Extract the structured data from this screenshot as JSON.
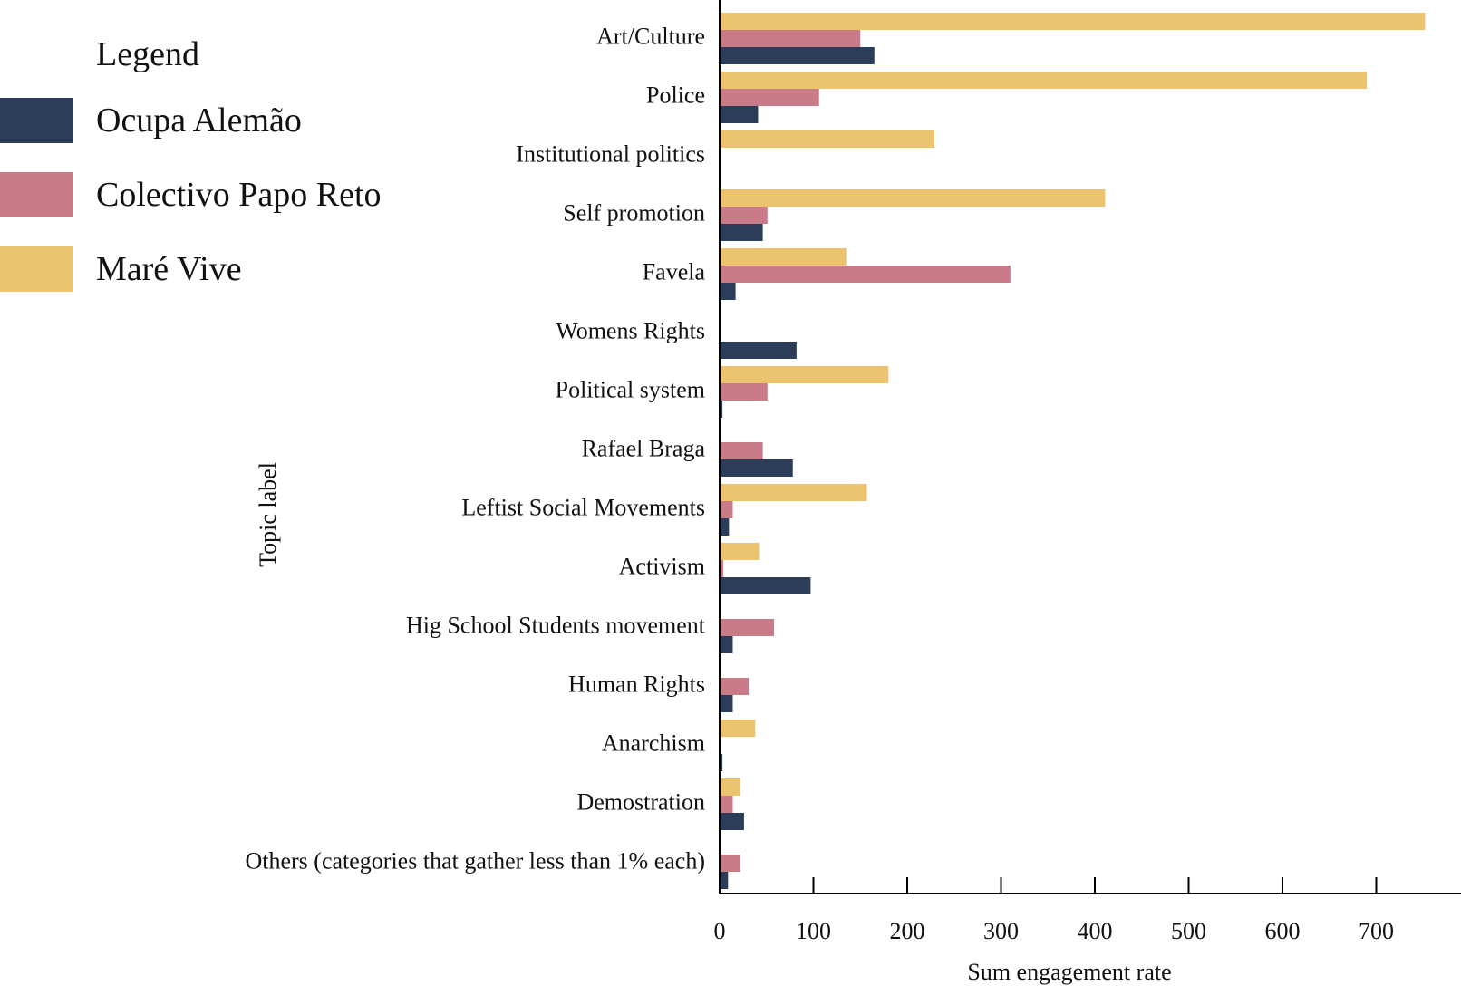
{
  "chart_data": {
    "type": "bar",
    "orientation": "horizontal",
    "title": "",
    "xlabel": "Sum engagement rate",
    "ylabel": "Topic label",
    "xlim": [
      0,
      780
    ],
    "xticks": [
      0,
      100,
      200,
      300,
      400,
      500,
      600,
      700
    ],
    "grid": false,
    "legend_title": "Legend",
    "legend_position": "top-left",
    "categories": [
      "Art/Culture",
      "Police",
      "Institutional politics",
      "Self promotion",
      "Favela",
      "Womens Rights",
      "Political system",
      "Rafael Braga",
      "Leftist Social Movements",
      "Activism",
      "Hig School Students movement",
      "Human Rights",
      "Anarchism",
      "Demostration",
      "Others (categories that gather less than 1% each)"
    ],
    "series": [
      {
        "name": "Maré Vive",
        "color": "#ECC46F",
        "values": [
          752,
          690,
          229,
          411,
          135,
          0,
          180,
          0,
          157,
          42,
          0,
          0,
          38,
          22,
          0
        ]
      },
      {
        "name": "Colectivo Papo Reto",
        "color": "#C97B88",
        "values": [
          150,
          106,
          0,
          51,
          310,
          0,
          51,
          46,
          14,
          4,
          58,
          31,
          0,
          14,
          22
        ]
      },
      {
        "name": "Ocupa Alemão",
        "color": "#2B3D58",
        "values": [
          165,
          41,
          0,
          46,
          17,
          82,
          3,
          78,
          10,
          97,
          14,
          14,
          3,
          26,
          9
        ]
      }
    ],
    "legend_order": [
      "Ocupa Alemão",
      "Colectivo Papo Reto",
      "Maré Vive"
    ]
  }
}
